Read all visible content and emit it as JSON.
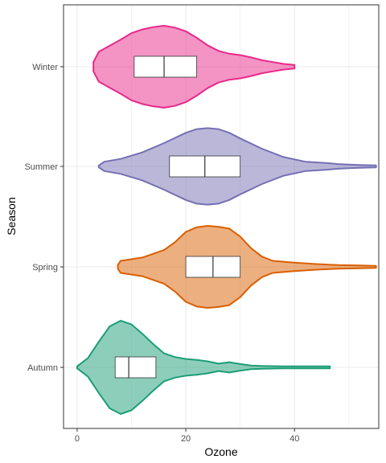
{
  "chart_data": {
    "type": "violin",
    "xlabel": "Ozone",
    "ylabel": "Season",
    "xlim": [
      -2.5,
      55.5
    ],
    "x_ticks": [
      0,
      20,
      40
    ],
    "categories": [
      "Autumn",
      "Spring",
      "Summer",
      "Winter"
    ],
    "grid": true,
    "legend": "none",
    "series": [
      {
        "name": "Autumn",
        "color": "#1b9e77",
        "box": {
          "q1": 7,
          "median": 9.5,
          "q3": 14.5
        },
        "density": [
          [
            0,
            0.02
          ],
          [
            2,
            0.2
          ],
          [
            4,
            0.55
          ],
          [
            6,
            0.88
          ],
          [
            8,
            1.0
          ],
          [
            10,
            0.92
          ],
          [
            12,
            0.72
          ],
          [
            14,
            0.5
          ],
          [
            16,
            0.3
          ],
          [
            18,
            0.22
          ],
          [
            20,
            0.18
          ],
          [
            22,
            0.16
          ],
          [
            24,
            0.13
          ],
          [
            26,
            0.08
          ],
          [
            28,
            0.11
          ],
          [
            30,
            0.07
          ],
          [
            32,
            0.04
          ],
          [
            34,
            0.03
          ],
          [
            38,
            0.02
          ],
          [
            42,
            0.02
          ],
          [
            46.5,
            0.02
          ]
        ]
      },
      {
        "name": "Spring",
        "color": "#d95f02",
        "box": {
          "q1": 20,
          "median": 25,
          "q3": 30
        },
        "density": [
          [
            7.5,
            0.04
          ],
          [
            8,
            0.13
          ],
          [
            12,
            0.2
          ],
          [
            16,
            0.36
          ],
          [
            18,
            0.53
          ],
          [
            20,
            0.75
          ],
          [
            22,
            0.85
          ],
          [
            24,
            0.88
          ],
          [
            26,
            0.86
          ],
          [
            28,
            0.82
          ],
          [
            30,
            0.65
          ],
          [
            32,
            0.4
          ],
          [
            34,
            0.22
          ],
          [
            36,
            0.13
          ],
          [
            40,
            0.09
          ],
          [
            44,
            0.06
          ],
          [
            48,
            0.04
          ],
          [
            52,
            0.03
          ],
          [
            55,
            0.02
          ]
        ]
      },
      {
        "name": "Summer",
        "color": "#7570b3",
        "box": {
          "q1": 17,
          "median": 23.5,
          "q3": 30
        },
        "density": [
          [
            4,
            0.02
          ],
          [
            5,
            0.1
          ],
          [
            8,
            0.16
          ],
          [
            12,
            0.3
          ],
          [
            16,
            0.5
          ],
          [
            20,
            0.72
          ],
          [
            22,
            0.8
          ],
          [
            24,
            0.82
          ],
          [
            26,
            0.8
          ],
          [
            28,
            0.72
          ],
          [
            30,
            0.6
          ],
          [
            34,
            0.38
          ],
          [
            38,
            0.2
          ],
          [
            42,
            0.1
          ],
          [
            46,
            0.07
          ],
          [
            48,
            0.05
          ],
          [
            50,
            0.04
          ],
          [
            52,
            0.03
          ],
          [
            55,
            0.02
          ]
        ]
      },
      {
        "name": "Winter",
        "color": "#e7298a",
        "box": {
          "q1": 10.5,
          "median": 16,
          "q3": 22
        },
        "density": [
          [
            3,
            0.1
          ],
          [
            4,
            0.32
          ],
          [
            6,
            0.45
          ],
          [
            8,
            0.58
          ],
          [
            10,
            0.72
          ],
          [
            12,
            0.8
          ],
          [
            14,
            0.85
          ],
          [
            16,
            0.88
          ],
          [
            18,
            0.84
          ],
          [
            20,
            0.76
          ],
          [
            22,
            0.62
          ],
          [
            24,
            0.46
          ],
          [
            26,
            0.34
          ],
          [
            28,
            0.28
          ],
          [
            30,
            0.25
          ],
          [
            32,
            0.2
          ],
          [
            34,
            0.14
          ],
          [
            36,
            0.1
          ],
          [
            38,
            0.06
          ],
          [
            40,
            0.04
          ]
        ]
      }
    ]
  }
}
